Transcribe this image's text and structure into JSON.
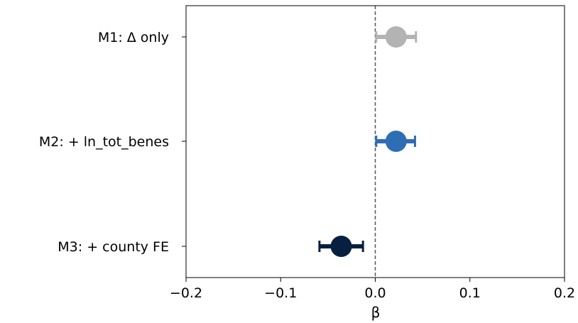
{
  "chart_data": {
    "type": "scatter",
    "subtype": "coefficient-plot",
    "title": "",
    "xlabel": "β",
    "ylabel": "",
    "xlim": [
      -0.2,
      0.2
    ],
    "xticks": [
      -0.2,
      -0.1,
      0.0,
      0.1,
      0.2
    ],
    "xtick_labels": [
      "−0.2",
      "−0.1",
      "0.0",
      "0.1",
      "0.2"
    ],
    "reference_line": {
      "x": 0.0,
      "style": "dashed",
      "color": "#555555"
    },
    "grid": false,
    "legend": "none",
    "models": [
      {
        "label": "M1: Δ only",
        "estimate": 0.022,
        "ci_low": 0.001,
        "ci_high": 0.043,
        "color": "#b3b3b3"
      },
      {
        "label": "M2: + ln_tot_benes",
        "estimate": 0.022,
        "ci_low": 0.001,
        "ci_high": 0.042,
        "color": "#2f6db5"
      },
      {
        "label": "M3: + county FE",
        "estimate": -0.036,
        "ci_low": -0.059,
        "ci_high": -0.013,
        "color": "#08203f"
      }
    ]
  }
}
